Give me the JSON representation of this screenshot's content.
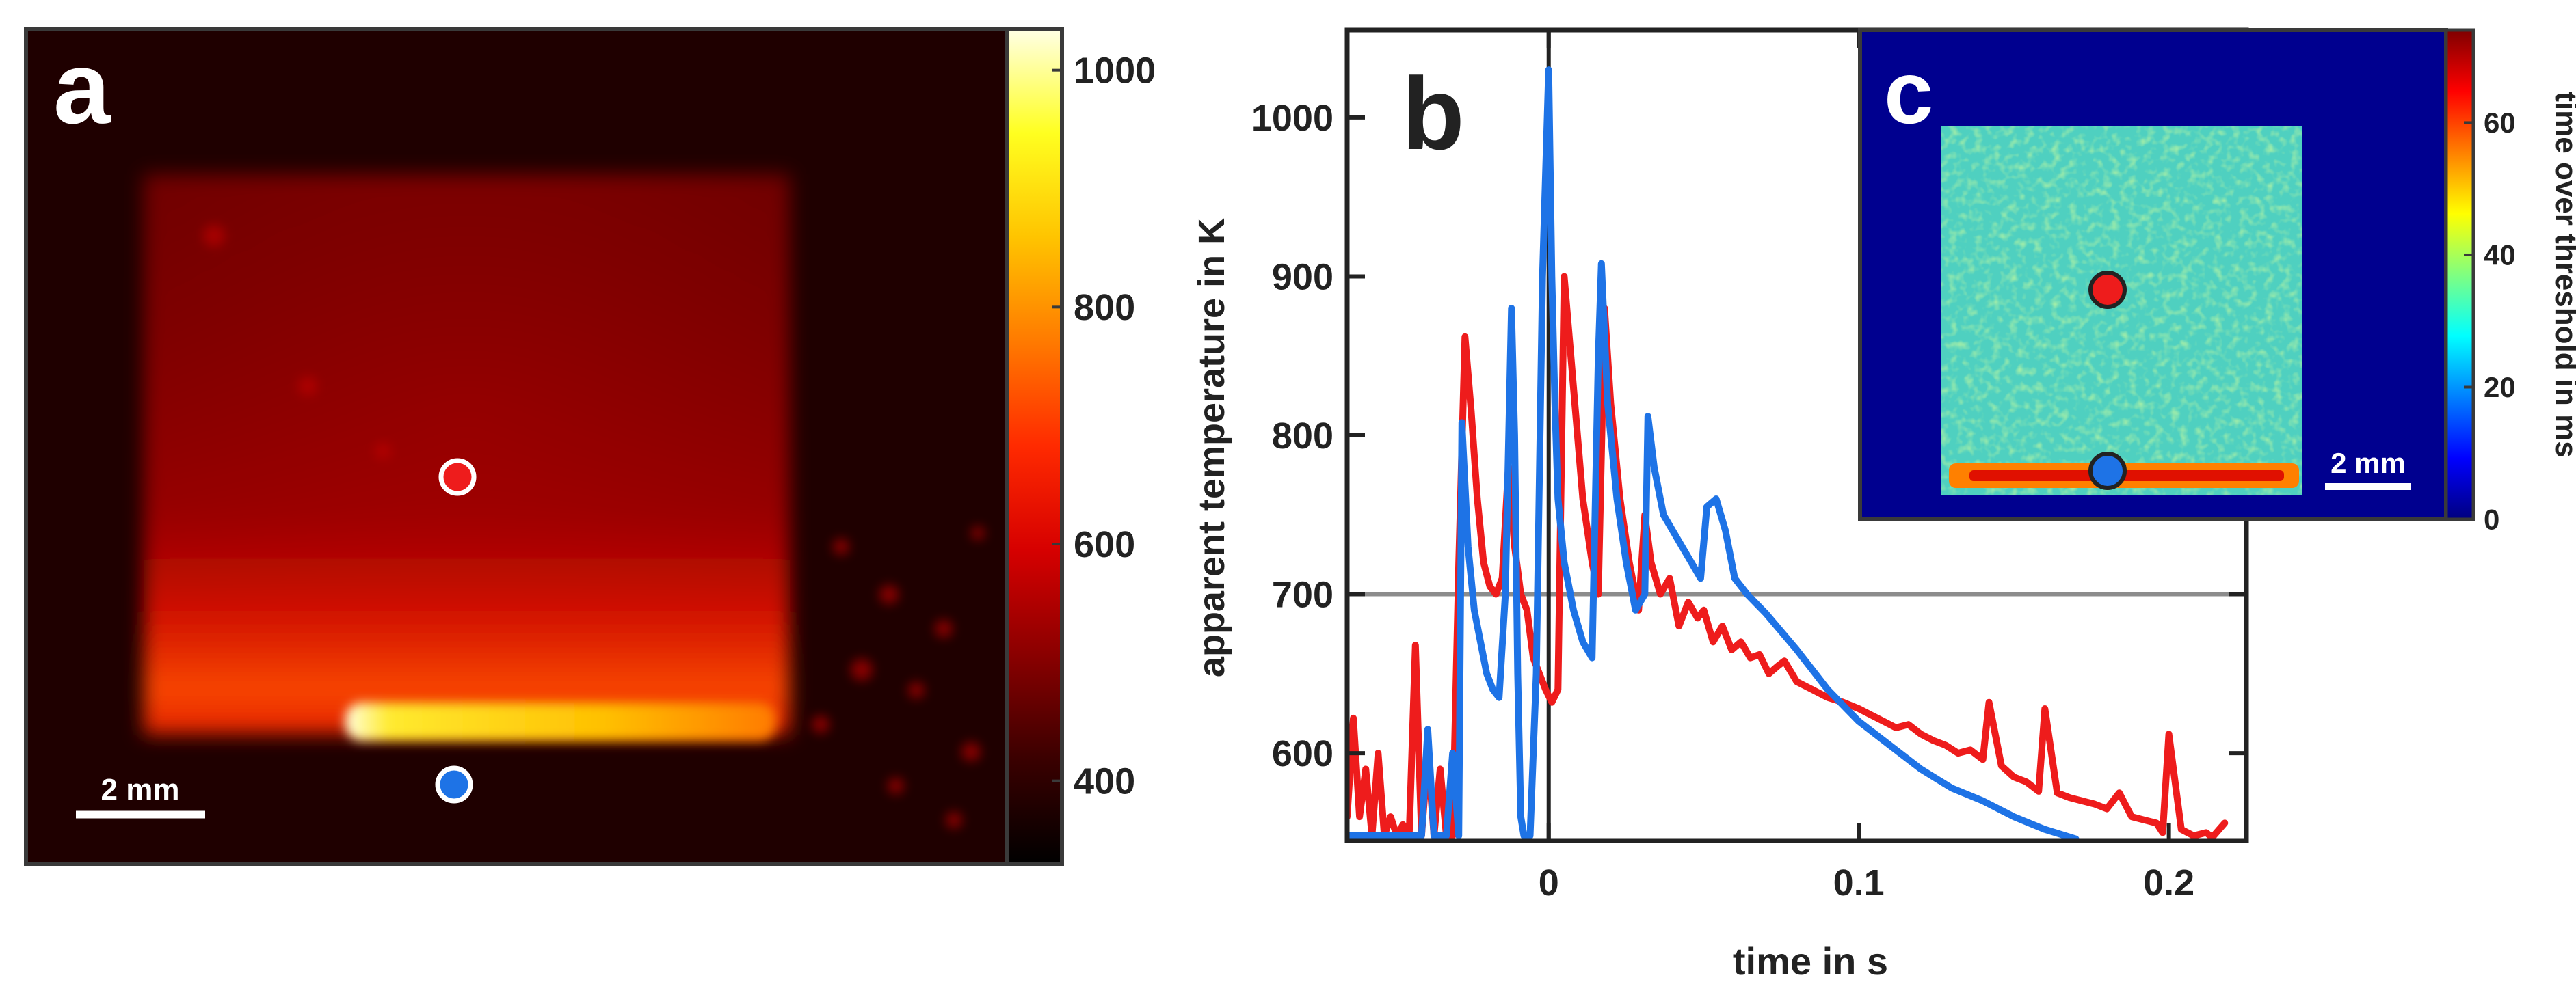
{
  "panels": {
    "a": {
      "letter": "a",
      "scalebar_label": "2 mm",
      "colorbar": {
        "ticks": [
          "1000",
          "800",
          "600",
          "400"
        ],
        "tick_values": [
          1000,
          800,
          600,
          400
        ],
        "range": [
          330,
          1035
        ],
        "colors": [
          "#000000",
          "#3a0000",
          "#8a0000",
          "#d60000",
          "#ff2a00",
          "#ff7a00",
          "#ffc400",
          "#ffff20",
          "#ffffe6"
        ]
      }
    },
    "b": {
      "letter": "b"
    },
    "c": {
      "letter": "c",
      "scalebar_label": "2 mm",
      "colorbar": {
        "label": "time over threshold in ms",
        "ticks": [
          "60",
          "40",
          "20",
          "0"
        ],
        "tick_values": [
          60,
          40,
          20,
          0
        ],
        "range": [
          0,
          74
        ],
        "colors": [
          "#00007f",
          "#0000ff",
          "#0080ff",
          "#00ffff",
          "#80ff80",
          "#ffff00",
          "#ff8000",
          "#ff0000",
          "#7f0000"
        ]
      }
    }
  },
  "colors": {
    "red_series": "#ee1c1c",
    "blue_series": "#1e73e6",
    "threshold": "#8c8c8c",
    "thermal_bg": "#1f0000",
    "map_bg": "#00008f"
  },
  "chart_data": {
    "type": "line",
    "title": "",
    "xlabel": "time in s",
    "ylabel": "apparent temperature in K",
    "xlim": [
      -0.065,
      0.225
    ],
    "ylim": [
      545,
      1055
    ],
    "x_ticks": [
      0,
      0.1,
      0.2
    ],
    "x_tick_labels": [
      "0",
      "0.1",
      "0.2"
    ],
    "y_ticks": [
      600,
      700,
      800,
      900,
      1000
    ],
    "y_tick_labels": [
      "600",
      "700",
      "800",
      "900",
      "1000"
    ],
    "threshold": 700,
    "series": [
      {
        "name": "red",
        "x": [
          -0.065,
          -0.063,
          -0.061,
          -0.059,
          -0.057,
          -0.055,
          -0.053,
          -0.051,
          -0.049,
          -0.047,
          -0.045,
          -0.043,
          -0.041,
          -0.039,
          -0.037,
          -0.035,
          -0.033,
          -0.031,
          -0.029,
          -0.027,
          -0.025,
          -0.023,
          -0.021,
          -0.019,
          -0.017,
          -0.015,
          -0.013,
          -0.011,
          -0.009,
          -0.007,
          -0.005,
          -0.003,
          -0.001,
          0.001,
          0.003,
          0.005,
          0.008,
          0.011,
          0.014,
          0.016,
          0.018,
          0.02,
          0.023,
          0.026,
          0.029,
          0.031,
          0.033,
          0.036,
          0.039,
          0.042,
          0.045,
          0.048,
          0.05,
          0.053,
          0.056,
          0.059,
          0.062,
          0.065,
          0.068,
          0.071,
          0.074,
          0.076,
          0.08,
          0.085,
          0.09,
          0.095,
          0.1,
          0.104,
          0.108,
          0.112,
          0.116,
          0.12,
          0.124,
          0.128,
          0.132,
          0.136,
          0.14,
          0.142,
          0.146,
          0.15,
          0.154,
          0.158,
          0.16,
          0.164,
          0.168,
          0.172,
          0.176,
          0.18,
          0.184,
          0.188,
          0.192,
          0.196,
          0.198,
          0.2,
          0.204,
          0.208,
          0.212,
          0.214,
          0.218
        ],
        "values": [
          560,
          622,
          560,
          590,
          548,
          600,
          548,
          560,
          548,
          555,
          548,
          668,
          548,
          600,
          548,
          590,
          548,
          548,
          720,
          862,
          815,
          760,
          720,
          705,
          700,
          710,
          780,
          730,
          700,
          690,
          660,
          650,
          640,
          632,
          640,
          900,
          830,
          760,
          720,
          700,
          880,
          820,
          760,
          720,
          690,
          750,
          720,
          700,
          710,
          680,
          695,
          685,
          690,
          670,
          680,
          665,
          670,
          660,
          662,
          650,
          655,
          658,
          645,
          640,
          635,
          632,
          628,
          624,
          620,
          616,
          618,
          612,
          608,
          605,
          600,
          602,
          596,
          632,
          592,
          585,
          582,
          576,
          628,
          575,
          572,
          570,
          568,
          565,
          575,
          560,
          558,
          556,
          550,
          612,
          552,
          548,
          550,
          547,
          556
        ]
      },
      {
        "name": "blue",
        "x": [
          -0.065,
          -0.062,
          -0.059,
          -0.056,
          -0.053,
          -0.05,
          -0.047,
          -0.045,
          -0.043,
          -0.041,
          -0.039,
          -0.037,
          -0.035,
          -0.033,
          -0.031,
          -0.029,
          -0.028,
          -0.026,
          -0.024,
          -0.022,
          -0.02,
          -0.018,
          -0.016,
          -0.014,
          -0.012,
          -0.011,
          -0.01,
          -0.009,
          -0.008,
          -0.006,
          -0.004,
          -0.002,
          0,
          0.001,
          0.002,
          0.003,
          0.005,
          0.008,
          0.011,
          0.014,
          0.016,
          0.017,
          0.019,
          0.022,
          0.025,
          0.028,
          0.031,
          0.032,
          0.034,
          0.037,
          0.04,
          0.043,
          0.046,
          0.049,
          0.051,
          0.054,
          0.057,
          0.06,
          0.064,
          0.07,
          0.08,
          0.09,
          0.1,
          0.11,
          0.12,
          0.13,
          0.14,
          0.15,
          0.16,
          0.17
        ],
        "values": [
          548,
          548,
          548,
          548,
          548,
          548,
          548,
          548,
          548,
          548,
          615,
          548,
          548,
          548,
          600,
          548,
          808,
          730,
          690,
          670,
          650,
          640,
          635,
          700,
          880,
          800,
          650,
          560,
          548,
          548,
          650,
          900,
          1030,
          900,
          820,
          760,
          720,
          690,
          670,
          660,
          850,
          908,
          820,
          760,
          720,
          690,
          700,
          812,
          780,
          750,
          740,
          730,
          720,
          710,
          755,
          760,
          740,
          710,
          700,
          688,
          665,
          640,
          620,
          605,
          590,
          578,
          570,
          560,
          552,
          546
        ]
      }
    ]
  }
}
